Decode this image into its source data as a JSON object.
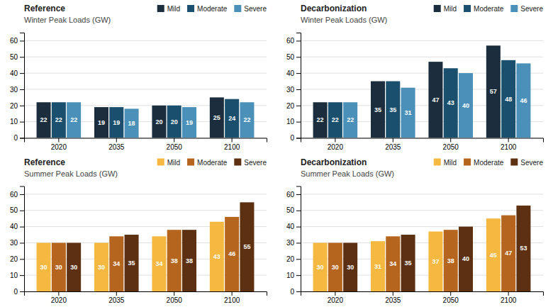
{
  "chart_data": [
    {
      "type": "bar",
      "title": "Reference",
      "subtitle": "Winter Peak Loads (GW)",
      "categories": [
        "2020",
        "2035",
        "2050",
        "2100"
      ],
      "series": [
        {
          "name": "Mild",
          "color": "#1c2e3d",
          "values": [
            22,
            19,
            20,
            25
          ]
        },
        {
          "name": "Moderate",
          "color": "#1a4f6e",
          "values": [
            22,
            19,
            20,
            24
          ]
        },
        {
          "name": "Severe",
          "color": "#4a90b8",
          "values": [
            22,
            18,
            19,
            22
          ]
        }
      ],
      "ylim": [
        0,
        65
      ],
      "yticks": [
        0,
        10,
        20,
        30,
        40,
        50,
        60
      ],
      "grid": true,
      "legend": "top-right",
      "data_labels": true
    },
    {
      "type": "bar",
      "title": "Decarbonization",
      "subtitle": "Winter Peak Loads (GW)",
      "categories": [
        "2020",
        "2035",
        "2050",
        "2100"
      ],
      "series": [
        {
          "name": "Mild",
          "color": "#1c2e3d",
          "values": [
            22,
            35,
            47,
            57
          ]
        },
        {
          "name": "Moderate",
          "color": "#1a4f6e",
          "values": [
            22,
            35,
            43,
            48
          ]
        },
        {
          "name": "Severe",
          "color": "#4a90b8",
          "values": [
            22,
            31,
            40,
            46
          ]
        }
      ],
      "ylim": [
        0,
        65
      ],
      "yticks": [
        0,
        10,
        20,
        30,
        40,
        50,
        60
      ],
      "grid": true,
      "legend": "top-right",
      "data_labels": true
    },
    {
      "type": "bar",
      "title": "Reference",
      "subtitle": "Summer Peak Loads (GW)",
      "categories": [
        "2020",
        "2035",
        "2050",
        "2100"
      ],
      "series": [
        {
          "name": "Mild",
          "color": "#f5b942",
          "values": [
            30,
            30,
            34,
            43
          ]
        },
        {
          "name": "Moderate",
          "color": "#b5651d",
          "values": [
            30,
            34,
            38,
            46
          ]
        },
        {
          "name": "Severe",
          "color": "#5c3010",
          "values": [
            30,
            35,
            38,
            55
          ]
        }
      ],
      "ylim": [
        0,
        65
      ],
      "yticks": [
        0,
        10,
        20,
        30,
        40,
        50,
        60
      ],
      "grid": true,
      "legend": "top-right",
      "data_labels": true
    },
    {
      "type": "bar",
      "title": "Decarbonization",
      "subtitle": "Summer Peak Loads (GW)",
      "categories": [
        "2020",
        "2035",
        "2050",
        "2100"
      ],
      "series": [
        {
          "name": "Mild",
          "color": "#f5b942",
          "values": [
            30,
            31,
            37,
            45
          ]
        },
        {
          "name": "Moderate",
          "color": "#b5651d",
          "values": [
            30,
            34,
            38,
            47
          ]
        },
        {
          "name": "Severe",
          "color": "#5c3010",
          "values": [
            30,
            35,
            40,
            53
          ]
        }
      ],
      "ylim": [
        0,
        65
      ],
      "yticks": [
        0,
        10,
        20,
        30,
        40,
        50,
        60
      ],
      "grid": true,
      "legend": "top-right",
      "data_labels": true
    }
  ]
}
